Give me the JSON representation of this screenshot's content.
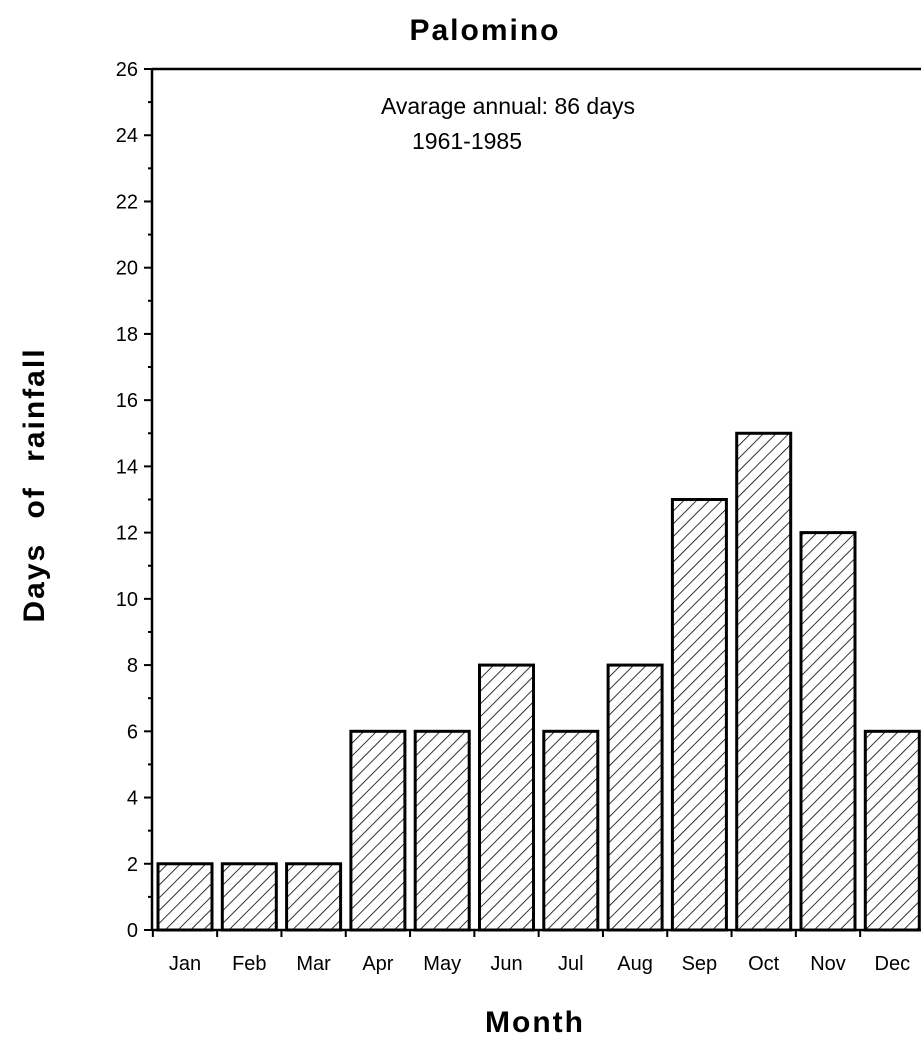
{
  "chart_data": {
    "type": "bar",
    "title": "Palomino",
    "xlabel": "Month",
    "ylabel": "Days of rainfall",
    "annotation": {
      "line1": "Avarage annual:  86 days",
      "line2": "1961-1985"
    },
    "categories": [
      "Jan",
      "Feb",
      "Mar",
      "Apr",
      "May",
      "Jun",
      "Jul",
      "Aug",
      "Sep",
      "Oct",
      "Nov",
      "Dec"
    ],
    "values": [
      2,
      2,
      2,
      6,
      6,
      8,
      6,
      8,
      13,
      15,
      12,
      6
    ],
    "ylim": [
      0,
      26
    ],
    "yticks": [
      0,
      2,
      4,
      6,
      8,
      10,
      12,
      14,
      16,
      18,
      20,
      22,
      24,
      26
    ],
    "grid": false,
    "bar_fill": "diagonal-hatch",
    "colors": {
      "bar_stroke": "#000000",
      "hatch": "#000000",
      "background": "#ffffff"
    }
  }
}
